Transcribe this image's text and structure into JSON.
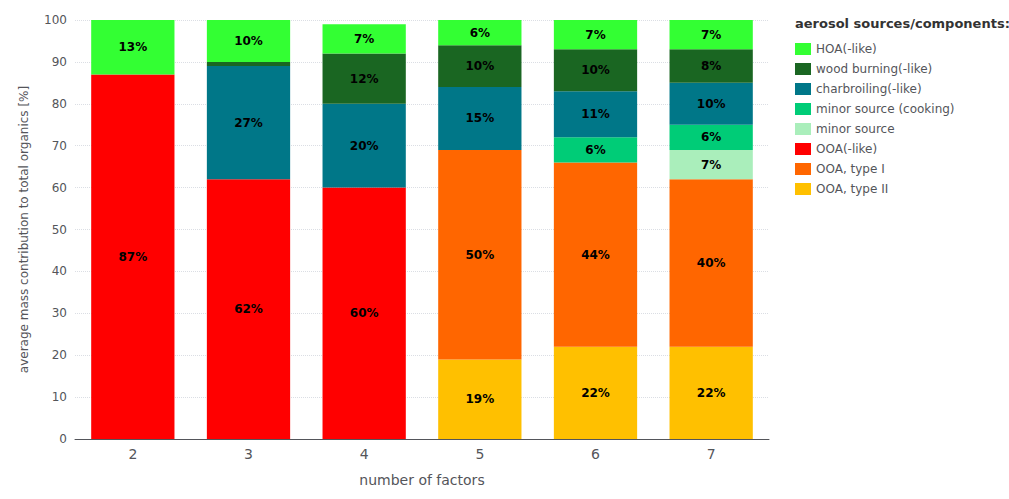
{
  "chart_data": {
    "type": "bar",
    "stacked": true,
    "data_labels": true,
    "grid": true,
    "legend": "right",
    "legend_title": "aerosol sources/components:",
    "xlabel": "number of factors",
    "ylabel": "average mass contribution to total organics [%]",
    "categories": [
      "2",
      "3",
      "4",
      "5",
      "6",
      "7"
    ],
    "ylim": [
      0,
      100
    ],
    "yticks": [
      0,
      10,
      20,
      30,
      40,
      50,
      60,
      70,
      80,
      90,
      100
    ],
    "series": [
      {
        "name": "OOA, type II",
        "color": "#FFC000",
        "values": [
          0,
          0,
          0,
          19,
          22,
          22
        ],
        "value_labels": [
          null,
          null,
          null,
          "19%",
          "22%",
          "22%"
        ]
      },
      {
        "name": "OOA, type I",
        "color": "#FF6600",
        "values": [
          0,
          0,
          0,
          50,
          44,
          40
        ],
        "value_labels": [
          null,
          null,
          null,
          "50%",
          "44%",
          "40%"
        ]
      },
      {
        "name": "OOA(-like)",
        "color": "#FF0000",
        "values": [
          87,
          62,
          60,
          0,
          0,
          0
        ],
        "value_labels": [
          "87%",
          "62%",
          "60%",
          null,
          null,
          null
        ]
      },
      {
        "name": "minor source",
        "color": "#AAEEBB",
        "values": [
          0,
          0,
          0,
          0,
          0,
          7
        ],
        "value_labels": [
          null,
          null,
          null,
          null,
          null,
          "7%"
        ]
      },
      {
        "name": "minor source (cooking)",
        "color": "#00CC77",
        "values": [
          0,
          0,
          0,
          0,
          6,
          6
        ],
        "value_labels": [
          null,
          null,
          null,
          null,
          "6%",
          "6%"
        ]
      },
      {
        "name": "charbroiling(-like)",
        "color": "#007788",
        "values": [
          0,
          27,
          20,
          15,
          11,
          10
        ],
        "value_labels": [
          null,
          "27%",
          "20%",
          "15%",
          "11%",
          "10%"
        ]
      },
      {
        "name": "wood burning(-like)",
        "color": "#1A6622",
        "values": [
          0,
          1,
          12,
          10,
          10,
          8
        ],
        "value_labels": [
          null,
          null,
          "12%",
          "10%",
          "10%",
          "8%"
        ]
      },
      {
        "name": "HOA(-like)",
        "color": "#33FF33",
        "values": [
          13,
          10,
          7,
          6,
          7,
          7
        ],
        "value_labels": [
          "13%",
          "10%",
          "7%",
          "6%",
          "7%",
          "7%"
        ]
      }
    ]
  }
}
